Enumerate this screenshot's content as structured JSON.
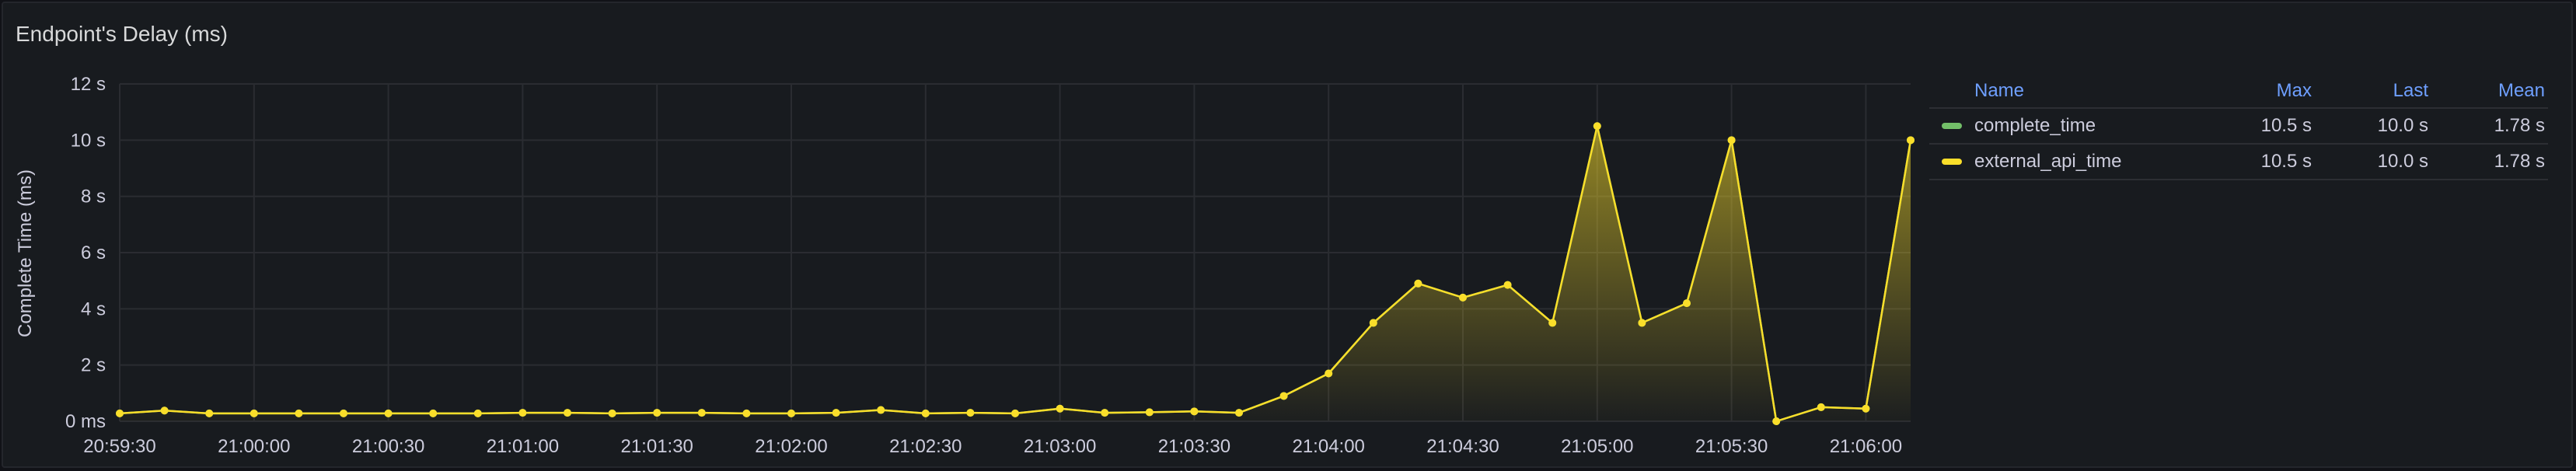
{
  "panel": {
    "title": "Endpoint's Delay (ms)"
  },
  "legend": {
    "headers": {
      "name": "Name",
      "max": "Max",
      "last": "Last",
      "mean": "Mean"
    },
    "rows": [
      {
        "name": "complete_time",
        "color": "#73bf69",
        "max": "10.5 s",
        "last": "10.0 s",
        "mean": "1.78 s"
      },
      {
        "name": "external_api_time",
        "color": "#fade2a",
        "max": "10.5 s",
        "last": "10.0 s",
        "mean": "1.78 s"
      }
    ]
  },
  "chart_data": {
    "type": "area",
    "ylabel": "Complete Time (ms)",
    "ylim": [
      0,
      12
    ],
    "yticks": [
      {
        "value": 0,
        "label": "0 ms"
      },
      {
        "value": 2,
        "label": "2 s"
      },
      {
        "value": 4,
        "label": "4 s"
      },
      {
        "value": 6,
        "label": "6 s"
      },
      {
        "value": 8,
        "label": "8 s"
      },
      {
        "value": 10,
        "label": "10 s"
      },
      {
        "value": 12,
        "label": "12 s"
      }
    ],
    "xlim": [
      "20:59:30",
      "21:06:10"
    ],
    "xticks": [
      "20:59:30",
      "21:00:00",
      "21:00:30",
      "21:01:00",
      "21:01:30",
      "21:02:00",
      "21:02:30",
      "21:03:00",
      "21:03:30",
      "21:04:00",
      "21:04:30",
      "21:05:00",
      "21:05:30",
      "21:06:00"
    ],
    "grid": true,
    "legend_position": "right",
    "x": [
      "20:59:30",
      "20:59:40",
      "20:59:50",
      "21:00:00",
      "21:00:10",
      "21:00:20",
      "21:00:30",
      "21:00:40",
      "21:00:50",
      "21:01:00",
      "21:01:10",
      "21:01:20",
      "21:01:30",
      "21:01:40",
      "21:01:50",
      "21:02:00",
      "21:02:10",
      "21:02:20",
      "21:02:30",
      "21:02:40",
      "21:02:50",
      "21:03:00",
      "21:03:10",
      "21:03:20",
      "21:03:30",
      "21:03:40",
      "21:03:50",
      "21:04:00",
      "21:04:10",
      "21:04:20",
      "21:04:30",
      "21:04:40",
      "21:04:50",
      "21:05:00",
      "21:05:10",
      "21:05:20",
      "21:05:30",
      "21:05:40",
      "21:05:50",
      "21:06:00",
      "21:06:10"
    ],
    "series": [
      {
        "name": "complete_time",
        "color": "#73bf69",
        "values": [
          0.28,
          0.38,
          0.28,
          0.28,
          0.28,
          0.28,
          0.28,
          0.28,
          0.28,
          0.3,
          0.3,
          0.28,
          0.3,
          0.3,
          0.28,
          0.28,
          0.3,
          0.4,
          0.28,
          0.3,
          0.28,
          0.45,
          0.3,
          0.32,
          0.35,
          0.3,
          0.9,
          1.7,
          3.5,
          4.9,
          4.4,
          4.85,
          3.5,
          10.5,
          3.5,
          4.2,
          10.0,
          0.0,
          0.5,
          0.45,
          10.0
        ]
      },
      {
        "name": "external_api_time",
        "color": "#fade2a",
        "values": [
          0.28,
          0.38,
          0.28,
          0.28,
          0.28,
          0.28,
          0.28,
          0.28,
          0.28,
          0.3,
          0.3,
          0.28,
          0.3,
          0.3,
          0.28,
          0.28,
          0.3,
          0.4,
          0.28,
          0.3,
          0.28,
          0.45,
          0.3,
          0.32,
          0.35,
          0.3,
          0.9,
          1.7,
          3.5,
          4.9,
          4.4,
          4.85,
          3.5,
          10.5,
          3.5,
          4.2,
          10.0,
          0.0,
          0.5,
          0.45,
          10.0
        ]
      }
    ]
  }
}
